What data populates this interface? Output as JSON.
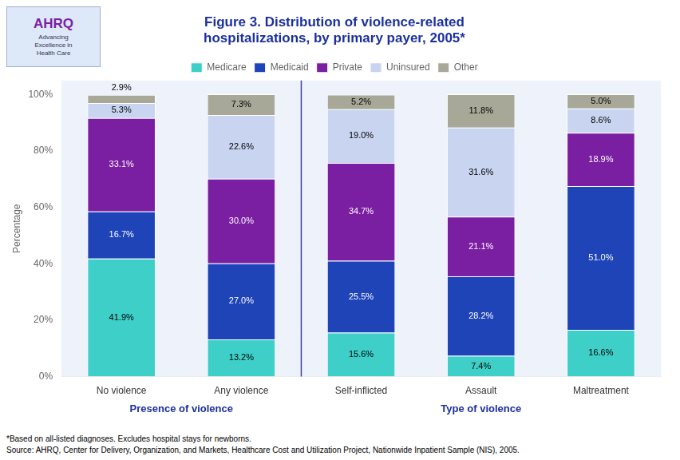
{
  "chart_data": {
    "type": "bar",
    "stacked": true,
    "title": "Figure 3. Distribution of violence-related\nhospitalizations, by primary payer, 2005*",
    "categories": [
      "No violence",
      "Any violence",
      "Self-inflicted",
      "Assault",
      "Maltreatment"
    ],
    "series": [
      {
        "name": "Medicare",
        "color": "#3DCFC8",
        "values": [
          41.9,
          13.2,
          15.6,
          7.4,
          16.6
        ],
        "value_labels": [
          "41.9%",
          "13.2%",
          "15.6%",
          "7.4%",
          "16.6%"
        ]
      },
      {
        "name": "Medicaid",
        "color": "#1E44B8",
        "values": [
          16.7,
          27.0,
          25.5,
          28.2,
          51.0
        ],
        "value_labels": [
          "16.7%",
          "27.0%",
          "25.5%",
          "28.2%",
          "51.0%"
        ]
      },
      {
        "name": "Private",
        "color": "#7B1FA2",
        "values": [
          33.1,
          30.0,
          34.7,
          21.1,
          18.9
        ],
        "value_labels": [
          "33.1%",
          "30.0%",
          "34.7%",
          "21.1%",
          "18.9%"
        ]
      },
      {
        "name": "Uninsured",
        "color": "#C8D4F0",
        "values": [
          5.3,
          22.6,
          19.0,
          31.6,
          8.6
        ],
        "value_labels": [
          "5.3%",
          "22.6%",
          "19.0%",
          "31.6%",
          "8.6%"
        ]
      },
      {
        "name": "Other",
        "color": "#A8A898",
        "values": [
          2.9,
          7.3,
          5.2,
          11.8,
          5.0
        ],
        "value_labels": [
          "2.9%",
          "7.3%",
          "5.2%",
          "11.8%",
          "5.0%"
        ]
      }
    ],
    "ylabel": "Percentage",
    "ylim": [
      0,
      105
    ],
    "yticks": [
      {
        "value": 0,
        "label": "0%"
      },
      {
        "value": 20,
        "label": "20%"
      },
      {
        "value": 40,
        "label": "40%"
      },
      {
        "value": 60,
        "label": "60%"
      },
      {
        "value": 80,
        "label": "80%"
      },
      {
        "value": 100,
        "label": "100%"
      }
    ],
    "grid": false,
    "legend": "top",
    "data_labels": true,
    "groups": [
      {
        "label": "Presence of violence",
        "categories": [
          "No violence",
          "Any violence"
        ]
      },
      {
        "label": "Type of violence",
        "categories": [
          "Self-inflicted",
          "Assault",
          "Maltreatment"
        ]
      }
    ],
    "footnotes": [
      "*Based on all-listed diagnoses. Excludes hospital stays for newborns.",
      "Source: AHRQ, Center for Delivery, Organization, and Markets, Healthcare Cost and Utilization Project, Nationwide Inpatient Sample (NIS), 2005."
    ],
    "logo": {
      "title": "AHRQ",
      "subtitle": "Advancing\nExcellence in\nHealth Care"
    }
  }
}
